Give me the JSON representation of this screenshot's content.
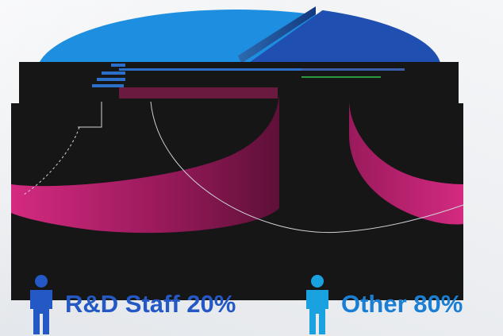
{
  "chart_data": {
    "type": "pie",
    "style": "3d-exploded",
    "slices": [
      {
        "label": "R&D Staff",
        "value": 20,
        "value_text": "20%",
        "color": "#1f4fb0",
        "side_color": "#8e1350"
      },
      {
        "label": "Other",
        "value": 80,
        "value_text": "80%",
        "color": "#1e8fe0",
        "side_color": "#c0206f"
      }
    ]
  },
  "legend": [
    {
      "text": "R&D Staff 20%",
      "text_color": "#2458c4",
      "icon": "person-icon",
      "icon_color": "#2458c4"
    },
    {
      "text": "Other 80%",
      "text_color": "#1a7fd4",
      "icon": "person-icon",
      "icon_color": "#1aa1e0"
    }
  ],
  "colors": {
    "rd_top": "#1f4fb0",
    "other_top": "#1e8fe0",
    "rim_dark": "#5e1038",
    "rim_light": "#d42a80",
    "overlay": "#161616"
  }
}
